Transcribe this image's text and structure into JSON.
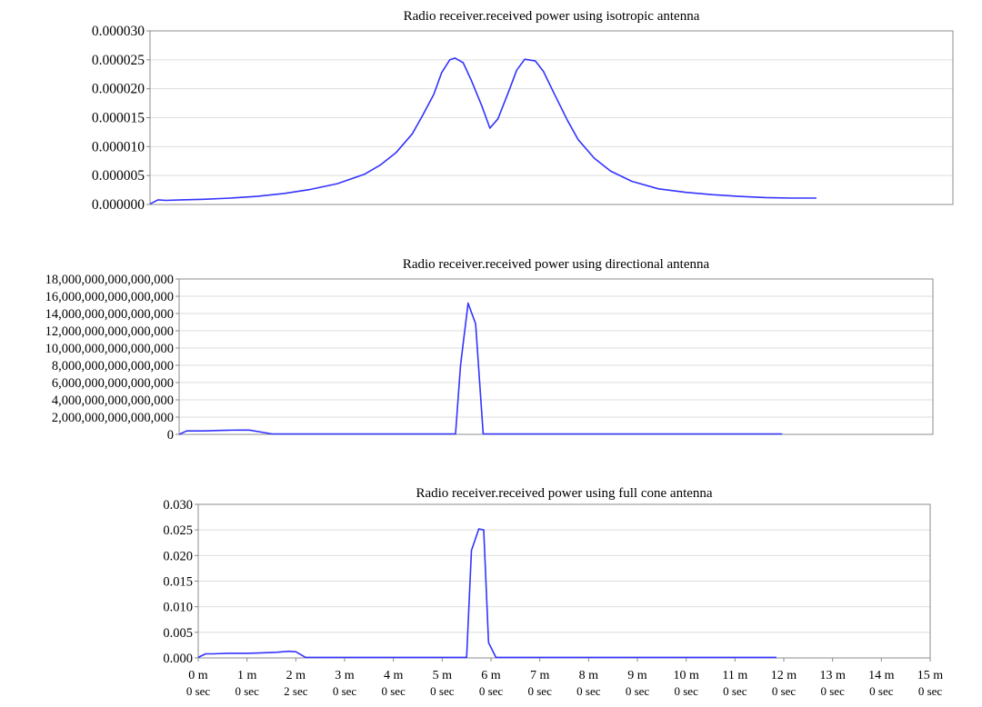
{
  "chart_data": [
    {
      "type": "line",
      "title": "Radio receiver.received power using isotropic antenna",
      "xlabel": "",
      "ylabel": "",
      "xlim": [
        0,
        15
      ],
      "ylim": [
        0,
        3e-05
      ],
      "y_ticks": [
        "0.000000",
        "0.000005",
        "0.000010",
        "0.000015",
        "0.000020",
        "0.000025",
        "0.000030"
      ],
      "grid": true,
      "legend": "none",
      "color": "#3333ff",
      "series": [
        {
          "x": [
            0.0,
            0.15,
            0.3,
            0.6,
            1.0,
            1.5,
            2.0,
            2.5,
            3.0,
            3.5,
            4.0,
            4.3,
            4.6,
            4.9,
            5.1,
            5.3,
            5.45,
            5.6,
            5.7,
            5.85,
            6.0,
            6.2,
            6.35,
            6.5,
            6.7,
            6.85,
            7.0,
            7.2,
            7.35,
            7.55,
            7.8,
            8.0,
            8.3,
            8.6,
            9.0,
            9.5,
            10.0,
            10.5,
            11.0,
            11.5,
            12.0,
            12.45
          ],
          "y": [
            1e-07,
            8e-07,
            7e-07,
            8e-07,
            9e-07,
            1.1e-06,
            1.4e-06,
            1.9e-06,
            2.6e-06,
            3.6e-06,
            5.2e-06,
            6.8e-06,
            9e-06,
            1.22e-05,
            1.55e-05,
            1.9e-05,
            2.28e-05,
            2.5e-05,
            2.53e-05,
            2.45e-05,
            2.15e-05,
            1.7e-05,
            1.32e-05,
            1.48e-05,
            1.95e-05,
            2.32e-05,
            2.51e-05,
            2.48e-05,
            2.3e-05,
            1.92e-05,
            1.45e-05,
            1.12e-05,
            8e-06,
            5.8e-06,
            4e-06,
            2.7e-06,
            2.1e-06,
            1.7e-06,
            1.4e-06,
            1.2e-06,
            1.1e-06,
            1.1e-06
          ]
        }
      ]
    },
    {
      "type": "line",
      "title": "Radio receiver.received power using directional antenna",
      "xlabel": "",
      "ylabel": "",
      "xlim": [
        0,
        15
      ],
      "ylim": [
        0,
        18000000000000000
      ],
      "y_ticks": [
        "0",
        "2,000,000,000,000,000",
        "4,000,000,000,000,000",
        "6,000,000,000,000,000",
        "8,000,000,000,000,000",
        "10,000,000,000,000,000",
        "12,000,000,000,000,000",
        "14,000,000,000,000,000",
        "16,000,000,000,000,000",
        "18,000,000,000,000,000"
      ],
      "grid": true,
      "legend": "none",
      "color": "#3333ff",
      "series": [
        {
          "x": [
            0.0,
            0.15,
            0.5,
            0.8,
            1.0,
            1.2,
            1.4,
            1.85,
            2.5,
            4.0,
            5.5,
            5.6,
            5.75,
            5.9,
            6.05,
            6.2,
            7.0,
            9.0,
            10.0,
            12.0,
            12.0
          ],
          "y": [
            0,
            400000000000000,
            400000000000000,
            450000000000000,
            480000000000000,
            500000000000000,
            500000000000000,
            50000000000000,
            50000000000000,
            50000000000000,
            50000000000000,
            8000000000000000,
            15200000000000000,
            12800000000000000,
            50000000000000,
            50000000000000,
            50000000000000,
            50000000000000,
            50000000000000,
            50000000000000,
            50000000000000
          ]
        }
      ]
    },
    {
      "type": "line",
      "title": "Radio receiver.received power using full cone antenna",
      "xlabel": "",
      "ylabel": "",
      "xlim": [
        0,
        15
      ],
      "ylim": [
        0,
        0.03
      ],
      "y_ticks": [
        "0.000",
        "0.005",
        "0.010",
        "0.015",
        "0.020",
        "0.025",
        "0.030"
      ],
      "x_ticks": [
        "0 m",
        "1 m",
        "2 m",
        "3 m",
        "4 m",
        "5 m",
        "6 m",
        "7 m",
        "8 m",
        "9 m",
        "10 m",
        "11 m",
        "12 m",
        "13 m",
        "14 m",
        "15 m"
      ],
      "x_ticks_sub": [
        "0 sec",
        "0 sec",
        "2 sec",
        "0 sec",
        "0 sec",
        "0 sec",
        "0 sec",
        "0 sec",
        "0 sec",
        "0 sec",
        "0 sec",
        "0 sec",
        "0 sec",
        "0 sec",
        "0 sec",
        "0 sec"
      ],
      "grid": true,
      "legend": "none",
      "color": "#3333ff",
      "series": [
        {
          "x": [
            0.0,
            0.15,
            0.3,
            0.6,
            1.0,
            1.3,
            1.6,
            1.85,
            2.0,
            2.2,
            3.0,
            4.0,
            5.5,
            5.6,
            5.75,
            5.85,
            5.95,
            6.1,
            7.0,
            9.0,
            11.0,
            11.85
          ],
          "y": [
            0.0001,
            0.0008,
            0.0008,
            0.0009,
            0.0009,
            0.001,
            0.0011,
            0.0013,
            0.0012,
            0.0001,
            0.0001,
            0.0001,
            0.0001,
            0.021,
            0.0252,
            0.025,
            0.003,
            0.0001,
            0.0001,
            0.0001,
            0.0001,
            0.0001
          ]
        }
      ]
    }
  ]
}
